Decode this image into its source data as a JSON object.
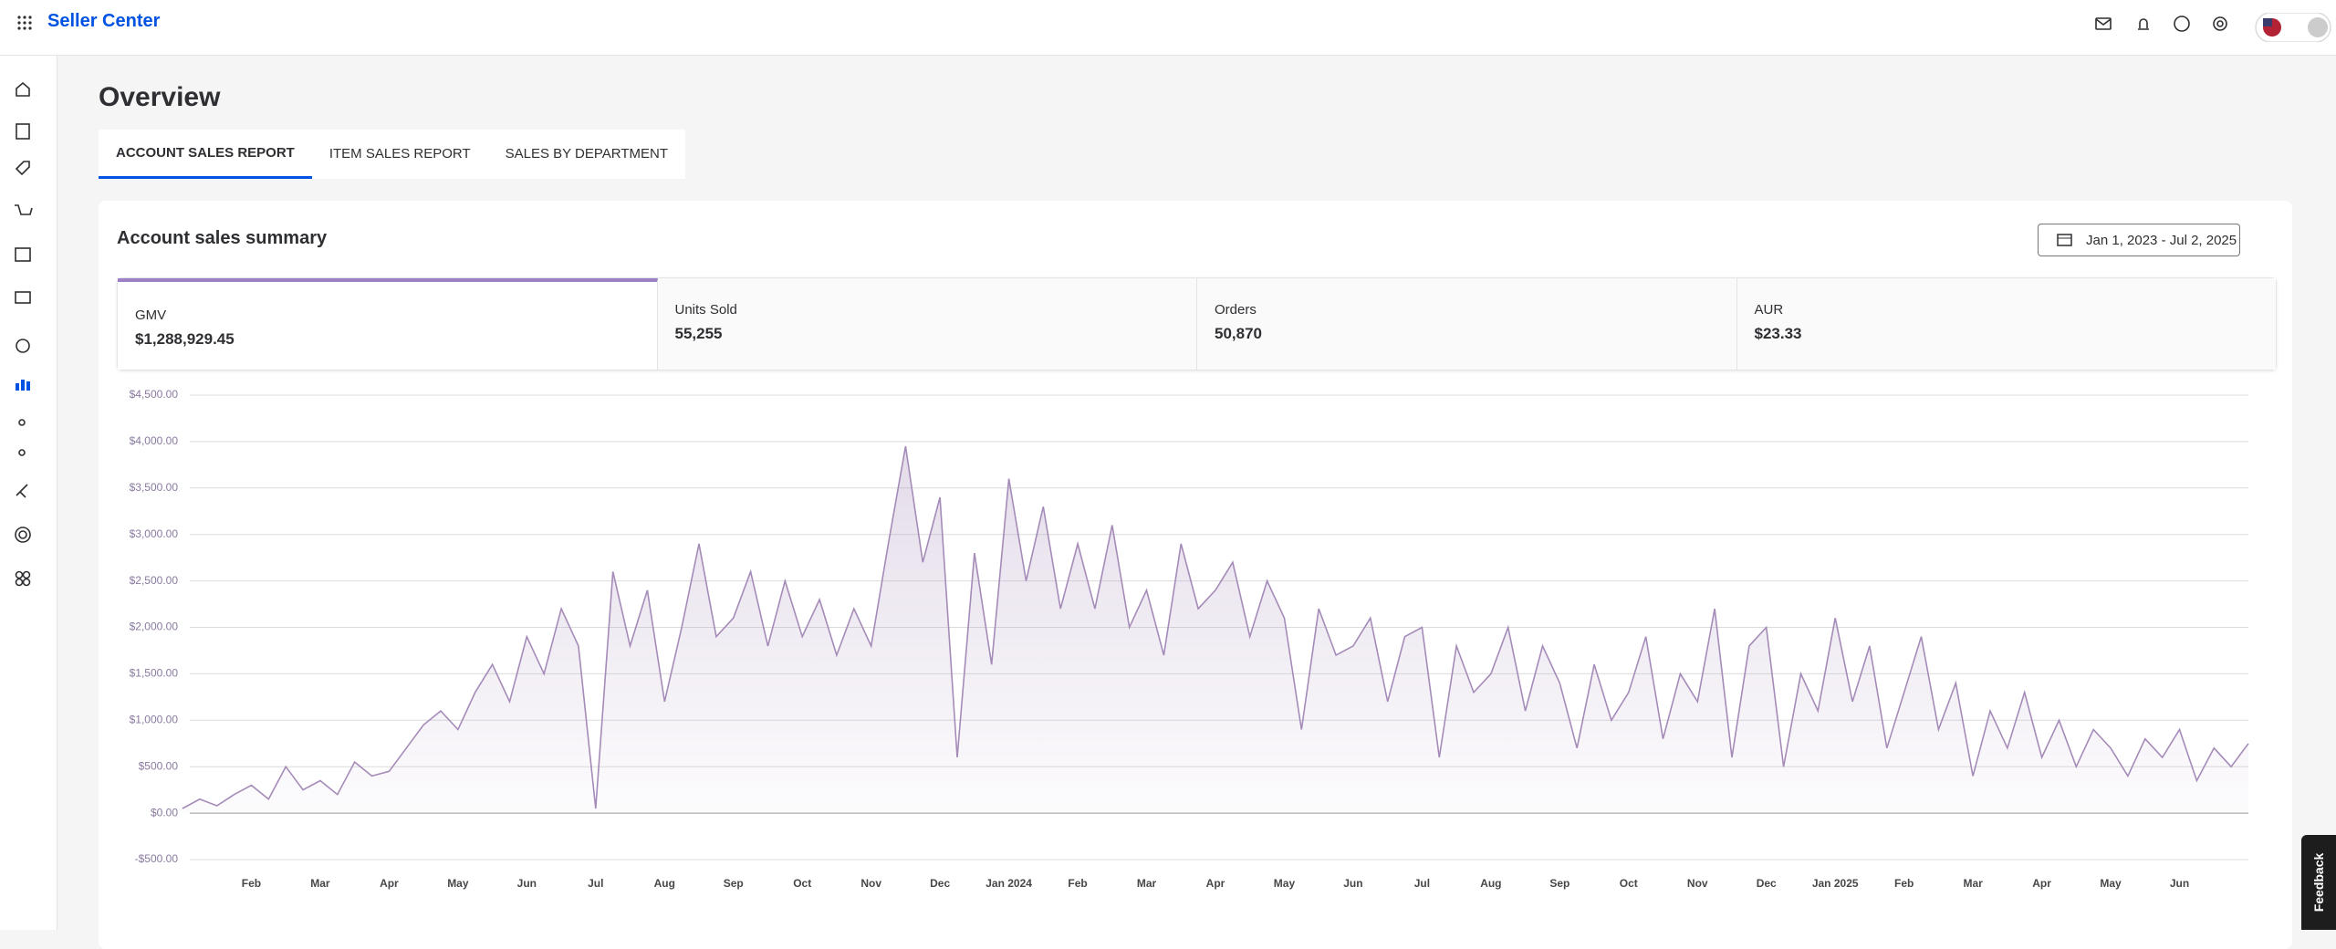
{
  "header": {
    "brand": "Seller Center"
  },
  "page": {
    "title": "Overview",
    "tabs": [
      "ACCOUNT SALES REPORT",
      "ITEM SALES REPORT",
      "SALES BY DEPARTMENT"
    ]
  },
  "summary": {
    "title": "Account sales summary",
    "date_range": "Jan 1, 2023 - Jul 2, 2025",
    "metrics": [
      {
        "label": "GMV",
        "value": "$1,288,929.45"
      },
      {
        "label": "Units Sold",
        "value": "55,255"
      },
      {
        "label": "Orders",
        "value": "50,870"
      },
      {
        "label": "AUR",
        "value": "$23.33"
      }
    ]
  },
  "feedback": "Feedback",
  "chart_data": {
    "type": "line",
    "categories": [
      null,
      null,
      null,
      null,
      "Feb",
      null,
      null,
      null,
      "Mar",
      null,
      null,
      null,
      "Apr",
      null,
      null,
      null,
      "May",
      null,
      null,
      null,
      "Jun",
      null,
      null,
      null,
      "Jul",
      null,
      null,
      null,
      "Aug",
      null,
      null,
      null,
      "Sep",
      null,
      null,
      null,
      "Oct",
      null,
      null,
      null,
      "Nov",
      null,
      null,
      null,
      "Dec",
      null,
      null,
      null,
      "Jan 2024",
      null,
      null,
      null,
      "Feb",
      null,
      null,
      null,
      "Mar",
      null,
      null,
      null,
      "Apr",
      null,
      null,
      null,
      "May",
      null,
      null,
      null,
      "Jun",
      null,
      null,
      null,
      "Jul",
      null,
      null,
      null,
      "Aug",
      null,
      null,
      null,
      "Sep",
      null,
      null,
      null,
      "Oct",
      null,
      null,
      null,
      "Nov",
      null,
      null,
      null,
      "Dec",
      null,
      null,
      null,
      "Jan 2025",
      null,
      null,
      null,
      "Feb",
      null,
      null,
      null,
      "Mar",
      null,
      null,
      null,
      "Apr",
      null,
      null,
      null,
      "May",
      null,
      null,
      null,
      "Jun",
      null,
      null,
      null,
      null
    ],
    "series": [
      {
        "name": "GMV",
        "color": "#a58bb8",
        "values": [
          50,
          150,
          80,
          200,
          300,
          150,
          500,
          250,
          350,
          200,
          550,
          400,
          450,
          700,
          950,
          1100,
          900,
          1300,
          1600,
          1200,
          1900,
          1500,
          2200,
          1800,
          50,
          2600,
          1800,
          2400,
          1200,
          2000,
          2900,
          1900,
          2100,
          2600,
          1800,
          2500,
          1900,
          2300,
          1700,
          2200,
          1800,
          2900,
          3950,
          2700,
          3400,
          600,
          2800,
          1600,
          3600,
          2500,
          3300,
          2200,
          2900,
          2200,
          3100,
          2000,
          2400,
          1700,
          2900,
          2200,
          2400,
          2700,
          1900,
          2500,
          2100,
          900,
          2200,
          1700,
          1800,
          2100,
          1200,
          1900,
          2000,
          600,
          1800,
          1300,
          1500,
          2000,
          1100,
          1800,
          1400,
          700,
          1600,
          1000,
          1300,
          1900,
          800,
          1500,
          1200,
          2200,
          600,
          1800,
          2000,
          500,
          1500,
          1100,
          2100,
          1200,
          1800,
          700,
          1300,
          1900,
          900,
          1400,
          400,
          1100,
          700,
          1300,
          600,
          1000,
          500,
          900,
          700,
          400,
          800,
          600,
          900,
          350,
          700,
          500,
          750
        ]
      }
    ],
    "ylim": [
      -500,
      4500
    ],
    "yticks": [
      {
        "value": -500,
        "label": "-$500.00"
      },
      {
        "value": 0,
        "label": "$0.00"
      },
      {
        "value": 500,
        "label": "$500.00"
      },
      {
        "value": 1000,
        "label": "$1,000.00"
      },
      {
        "value": 1500,
        "label": "$1,500.00"
      },
      {
        "value": 2000,
        "label": "$2,000.00"
      },
      {
        "value": 2500,
        "label": "$2,500.00"
      },
      {
        "value": 3000,
        "label": "$3,000.00"
      },
      {
        "value": 3500,
        "label": "$3,500.00"
      },
      {
        "value": 4000,
        "label": "$4,000.00"
      },
      {
        "value": 4500,
        "label": "$4,500.00"
      }
    ],
    "grid": true
  }
}
